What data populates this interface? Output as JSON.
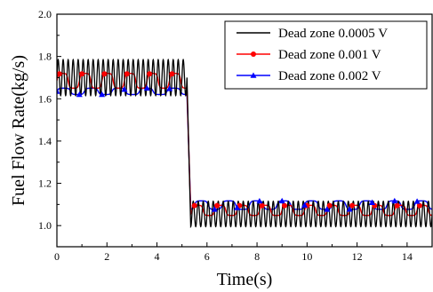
{
  "chart_data": {
    "type": "line",
    "title": "",
    "xlabel": "Time(s)",
    "ylabel": "Fuel Flow Rate(kg/s)",
    "xlim": [
      0,
      15
    ],
    "ylim": [
      0.9,
      2.0
    ],
    "x_ticks": [
      "0",
      "2",
      "4",
      "6",
      "8",
      "10",
      "12",
      "14"
    ],
    "y_ticks": [
      "1.0",
      "1.2",
      "1.4",
      "1.6",
      "1.8",
      "2.0"
    ],
    "x_tick_values": [
      0,
      2,
      4,
      6,
      8,
      10,
      12,
      14
    ],
    "y_tick_values": [
      1.0,
      1.2,
      1.4,
      1.6,
      1.8,
      2.0
    ],
    "grid": false,
    "legend_position": "top-right",
    "step_time": 5.2,
    "series": [
      {
        "name": "Dead zone 0.0005 V",
        "color": "#000000",
        "marker": "none",
        "oscillation": "sinusoidal",
        "before_step": {
          "center": 1.7,
          "amplitude": 0.085,
          "period": 0.2
        },
        "after_step": {
          "center": 1.055,
          "amplitude": 0.06,
          "period": 0.2
        }
      },
      {
        "name": "Dead zone 0.001 V",
        "color": "#ff0000",
        "marker": "circle",
        "oscillation": "square-like",
        "before_step": {
          "center": 1.685,
          "amplitude": 0.035,
          "period": 0.9
        },
        "after_step": {
          "center": 1.072,
          "amplitude": 0.024,
          "period": 0.9
        }
      },
      {
        "name": "Dead zone 0.002 V",
        "color": "#0000ff",
        "marker": "triangle",
        "oscillation": "square-like",
        "before_step": {
          "center": 1.635,
          "amplitude": 0.015,
          "period": 1.1
        },
        "after_step": {
          "center": 1.097,
          "amplitude": 0.02,
          "period": 1.1
        }
      }
    ]
  }
}
